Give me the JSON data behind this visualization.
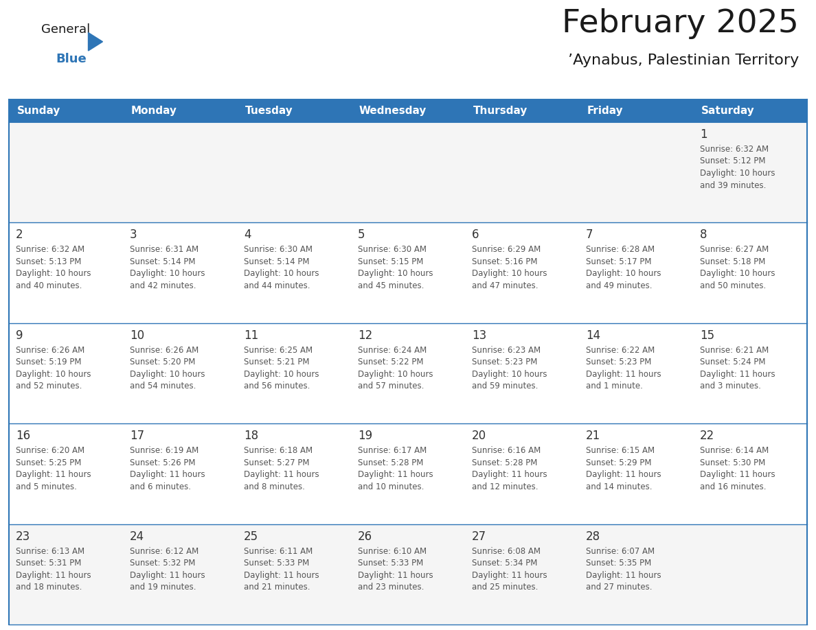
{
  "title": "February 2025",
  "subtitle": "’Aynabus, Palestinian Territory",
  "header_bg": "#2E75B6",
  "header_text_color": "#FFFFFF",
  "header_font_size": 11,
  "day_names": [
    "Sunday",
    "Monday",
    "Tuesday",
    "Wednesday",
    "Thursday",
    "Friday",
    "Saturday"
  ],
  "title_font_size": 34,
  "subtitle_font_size": 16,
  "cell_text_color": "#555555",
  "day_num_color": "#333333",
  "line_color": "#2E75B6",
  "bg_color": "#FFFFFF",
  "num_rows": 5,
  "num_cols": 7,
  "row1_bg": "#F2F2F2",
  "calendar": [
    [
      null,
      null,
      null,
      null,
      null,
      null,
      {
        "day": 1,
        "sunrise": "6:32 AM",
        "sunset": "5:12 PM",
        "daylight_l1": "10 hours",
        "daylight_l2": "and 39 minutes."
      }
    ],
    [
      {
        "day": 2,
        "sunrise": "6:32 AM",
        "sunset": "5:13 PM",
        "daylight_l1": "10 hours",
        "daylight_l2": "and 40 minutes."
      },
      {
        "day": 3,
        "sunrise": "6:31 AM",
        "sunset": "5:14 PM",
        "daylight_l1": "10 hours",
        "daylight_l2": "and 42 minutes."
      },
      {
        "day": 4,
        "sunrise": "6:30 AM",
        "sunset": "5:14 PM",
        "daylight_l1": "10 hours",
        "daylight_l2": "and 44 minutes."
      },
      {
        "day": 5,
        "sunrise": "6:30 AM",
        "sunset": "5:15 PM",
        "daylight_l1": "10 hours",
        "daylight_l2": "and 45 minutes."
      },
      {
        "day": 6,
        "sunrise": "6:29 AM",
        "sunset": "5:16 PM",
        "daylight_l1": "10 hours",
        "daylight_l2": "and 47 minutes."
      },
      {
        "day": 7,
        "sunrise": "6:28 AM",
        "sunset": "5:17 PM",
        "daylight_l1": "10 hours",
        "daylight_l2": "and 49 minutes."
      },
      {
        "day": 8,
        "sunrise": "6:27 AM",
        "sunset": "5:18 PM",
        "daylight_l1": "10 hours",
        "daylight_l2": "and 50 minutes."
      }
    ],
    [
      {
        "day": 9,
        "sunrise": "6:26 AM",
        "sunset": "5:19 PM",
        "daylight_l1": "10 hours",
        "daylight_l2": "and 52 minutes."
      },
      {
        "day": 10,
        "sunrise": "6:26 AM",
        "sunset": "5:20 PM",
        "daylight_l1": "10 hours",
        "daylight_l2": "and 54 minutes."
      },
      {
        "day": 11,
        "sunrise": "6:25 AM",
        "sunset": "5:21 PM",
        "daylight_l1": "10 hours",
        "daylight_l2": "and 56 minutes."
      },
      {
        "day": 12,
        "sunrise": "6:24 AM",
        "sunset": "5:22 PM",
        "daylight_l1": "10 hours",
        "daylight_l2": "and 57 minutes."
      },
      {
        "day": 13,
        "sunrise": "6:23 AM",
        "sunset": "5:23 PM",
        "daylight_l1": "10 hours",
        "daylight_l2": "and 59 minutes."
      },
      {
        "day": 14,
        "sunrise": "6:22 AM",
        "sunset": "5:23 PM",
        "daylight_l1": "11 hours",
        "daylight_l2": "and 1 minute."
      },
      {
        "day": 15,
        "sunrise": "6:21 AM",
        "sunset": "5:24 PM",
        "daylight_l1": "11 hours",
        "daylight_l2": "and 3 minutes."
      }
    ],
    [
      {
        "day": 16,
        "sunrise": "6:20 AM",
        "sunset": "5:25 PM",
        "daylight_l1": "11 hours",
        "daylight_l2": "and 5 minutes."
      },
      {
        "day": 17,
        "sunrise": "6:19 AM",
        "sunset": "5:26 PM",
        "daylight_l1": "11 hours",
        "daylight_l2": "and 6 minutes."
      },
      {
        "day": 18,
        "sunrise": "6:18 AM",
        "sunset": "5:27 PM",
        "daylight_l1": "11 hours",
        "daylight_l2": "and 8 minutes."
      },
      {
        "day": 19,
        "sunrise": "6:17 AM",
        "sunset": "5:28 PM",
        "daylight_l1": "11 hours",
        "daylight_l2": "and 10 minutes."
      },
      {
        "day": 20,
        "sunrise": "6:16 AM",
        "sunset": "5:28 PM",
        "daylight_l1": "11 hours",
        "daylight_l2": "and 12 minutes."
      },
      {
        "day": 21,
        "sunrise": "6:15 AM",
        "sunset": "5:29 PM",
        "daylight_l1": "11 hours",
        "daylight_l2": "and 14 minutes."
      },
      {
        "day": 22,
        "sunrise": "6:14 AM",
        "sunset": "5:30 PM",
        "daylight_l1": "11 hours",
        "daylight_l2": "and 16 minutes."
      }
    ],
    [
      {
        "day": 23,
        "sunrise": "6:13 AM",
        "sunset": "5:31 PM",
        "daylight_l1": "11 hours",
        "daylight_l2": "and 18 minutes."
      },
      {
        "day": 24,
        "sunrise": "6:12 AM",
        "sunset": "5:32 PM",
        "daylight_l1": "11 hours",
        "daylight_l2": "and 19 minutes."
      },
      {
        "day": 25,
        "sunrise": "6:11 AM",
        "sunset": "5:33 PM",
        "daylight_l1": "11 hours",
        "daylight_l2": "and 21 minutes."
      },
      {
        "day": 26,
        "sunrise": "6:10 AM",
        "sunset": "5:33 PM",
        "daylight_l1": "11 hours",
        "daylight_l2": "and 23 minutes."
      },
      {
        "day": 27,
        "sunrise": "6:08 AM",
        "sunset": "5:34 PM",
        "daylight_l1": "11 hours",
        "daylight_l2": "and 25 minutes."
      },
      {
        "day": 28,
        "sunrise": "6:07 AM",
        "sunset": "5:35 PM",
        "daylight_l1": "11 hours",
        "daylight_l2": "and 27 minutes."
      },
      null
    ]
  ],
  "logo_general_color": "#1a1a1a",
  "logo_blue_color": "#2E75B6"
}
